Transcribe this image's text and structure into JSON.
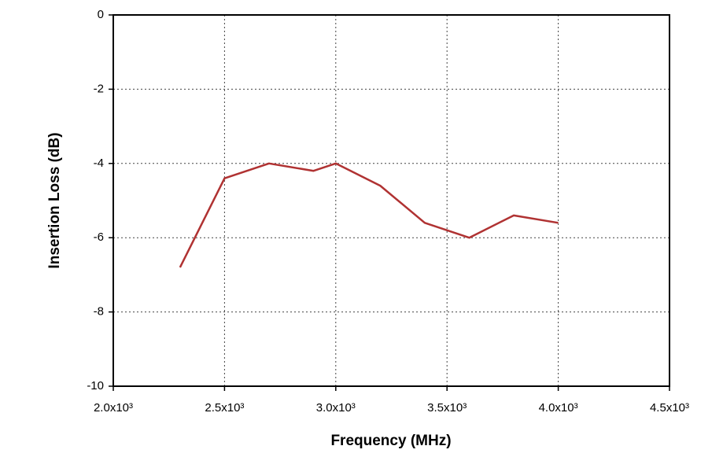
{
  "chart_data": {
    "type": "line",
    "xlabel": "Frequency (MHz)",
    "ylabel": "Insertion Loss (dB)",
    "x": [
      2300,
      2500,
      2700,
      2900,
      3000,
      3200,
      3400,
      3600,
      3800,
      4000
    ],
    "series": [
      {
        "color": "#b03232",
        "values": [
          -6.8,
          -4.4,
          -4.0,
          -4.2,
          -4.0,
          -4.6,
          -5.6,
          -6.0,
          -5.4,
          -5.6
        ]
      }
    ],
    "xlim": [
      2000,
      4500
    ],
    "xticks": [
      {
        "value": 2000,
        "label": "2.0x10³"
      },
      {
        "value": 2500,
        "label": "2.5x10³"
      },
      {
        "value": 3000,
        "label": "3.0x10³"
      },
      {
        "value": 3500,
        "label": "3.5x10³"
      },
      {
        "value": 4000,
        "label": "4.0x10³"
      },
      {
        "value": 4500,
        "label": "4.5x10³"
      }
    ],
    "ylim": [
      -10,
      0
    ],
    "yticks": [
      0,
      -2,
      -4,
      -6,
      -8,
      -10
    ],
    "grid": true
  }
}
